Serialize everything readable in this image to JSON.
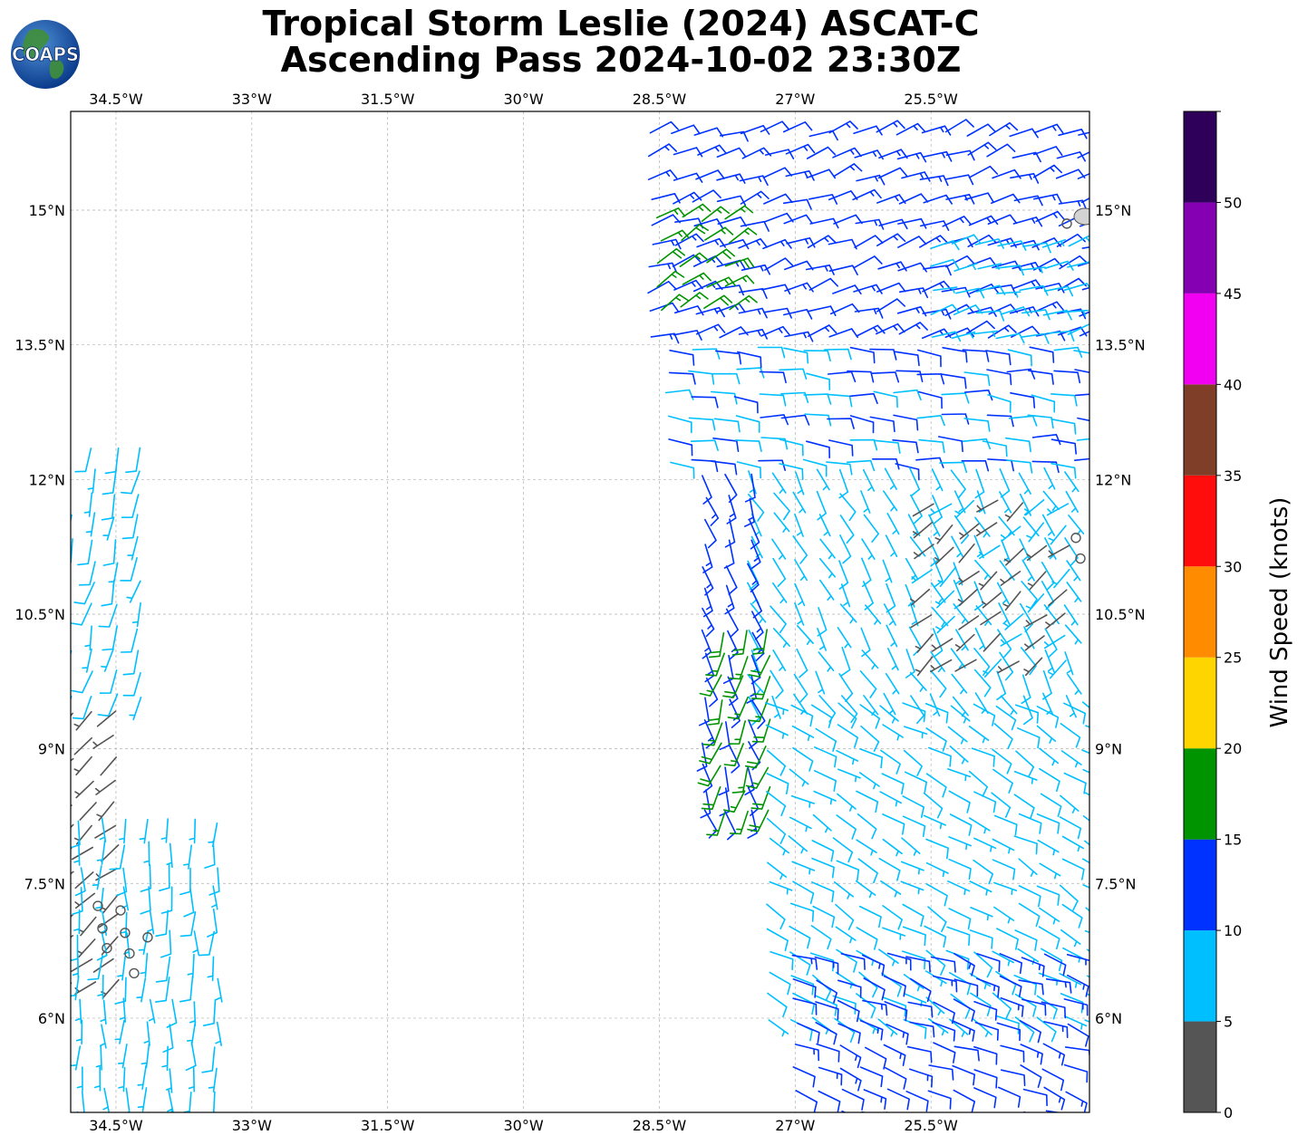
{
  "title": {
    "line1": "Tropical Storm Leslie (2024) ASCAT-C",
    "line2": "Ascending Pass 2024-10-02 23:30Z"
  },
  "logo": {
    "text": "COAPS",
    "icon": "globe-icon"
  },
  "map": {
    "lon_range": [
      -35.0,
      -23.75
    ],
    "lat_range": [
      4.95,
      16.1
    ],
    "lon_ticks": [
      {
        "value": -34.5,
        "label": "34.5°W"
      },
      {
        "value": -33.0,
        "label": "33°W"
      },
      {
        "value": -31.5,
        "label": "31.5°W"
      },
      {
        "value": -30.0,
        "label": "30°W"
      },
      {
        "value": -28.5,
        "label": "28.5°W"
      },
      {
        "value": -27.0,
        "label": "27°W"
      },
      {
        "value": -25.5,
        "label": "25.5°W"
      }
    ],
    "lat_ticks": [
      {
        "value": 15.0,
        "label": "15°N"
      },
      {
        "value": 13.5,
        "label": "13.5°N"
      },
      {
        "value": 12.0,
        "label": "12°N"
      },
      {
        "value": 10.5,
        "label": "10.5°N"
      },
      {
        "value": 9.0,
        "label": "9°N"
      },
      {
        "value": 7.5,
        "label": "7.5°N"
      },
      {
        "value": 6.0,
        "label": "6°N"
      }
    ],
    "grid": true,
    "island": {
      "lon": -23.8,
      "lat": 14.93
    }
  },
  "colorbar": {
    "label": "Wind Speed (knots)",
    "range": [
      0,
      55
    ],
    "ticks": [
      0,
      5,
      10,
      15,
      20,
      25,
      30,
      35,
      40,
      45,
      50
    ],
    "bins": [
      {
        "from": 0,
        "to": 5,
        "color": "#555555"
      },
      {
        "from": 5,
        "to": 10,
        "color": "#00bfff"
      },
      {
        "from": 10,
        "to": 15,
        "color": "#0032ff"
      },
      {
        "from": 15,
        "to": 20,
        "color": "#009400"
      },
      {
        "from": 20,
        "to": 25,
        "color": "#ffd500"
      },
      {
        "from": 25,
        "to": 30,
        "color": "#ff8c00"
      },
      {
        "from": 30,
        "to": 35,
        "color": "#ff0d0d"
      },
      {
        "from": 35,
        "to": 40,
        "color": "#7f3e28"
      },
      {
        "from": 40,
        "to": 45,
        "color": "#f200f2"
      },
      {
        "from": 45,
        "to": 50,
        "color": "#8500b2"
      },
      {
        "from": 50,
        "to": 55,
        "color": "#2e005a"
      }
    ]
  },
  "chart_data": {
    "type": "wind-barbs",
    "units": "knots",
    "calm_points": [
      {
        "lon": -34.7,
        "lat": 7.25
      },
      {
        "lon": -34.45,
        "lat": 7.2
      },
      {
        "lon": -34.65,
        "lat": 7.0
      },
      {
        "lon": -34.4,
        "lat": 6.95
      },
      {
        "lon": -34.15,
        "lat": 6.9
      },
      {
        "lon": -34.6,
        "lat": 6.78
      },
      {
        "lon": -34.35,
        "lat": 6.72
      },
      {
        "lon": -34.3,
        "lat": 6.5
      },
      {
        "lon": -23.9,
        "lat": 11.35
      },
      {
        "lon": -23.85,
        "lat": 11.12
      },
      {
        "lon": -24.0,
        "lat": 14.85
      }
    ],
    "regions": [
      {
        "name": "east-swath-north",
        "lon": [
          -28.6,
          -23.8
        ],
        "lat": [
          13.6,
          16.05
        ],
        "speed": 12,
        "dir_from": 70
      },
      {
        "name": "east-swath-north-green",
        "lon": [
          -28.5,
          -27.7
        ],
        "lat": [
          13.9,
          15.0
        ],
        "speed": 17,
        "dir_from": 60
      },
      {
        "name": "east-swath-north-light",
        "lon": [
          -25.5,
          -23.8
        ],
        "lat": [
          13.6,
          14.6
        ],
        "speed": 8,
        "dir_from": 75
      },
      {
        "name": "east-swath-mid",
        "lon": [
          -28.4,
          -23.8
        ],
        "lat": [
          12.2,
          13.6
        ],
        "speed": 10,
        "dir_from": 95
      },
      {
        "name": "east-swath-center",
        "lon": [
          -27.5,
          -23.8
        ],
        "lat": [
          9.6,
          12.2
        ],
        "speed": 7,
        "dir_from": 150
      },
      {
        "name": "east-swath-calm",
        "lon": [
          -25.5,
          -23.8
        ],
        "lat": [
          10.0,
          11.8
        ],
        "speed": 4,
        "dir_from": 230
      },
      {
        "name": "east-swath-west-edge",
        "lon": [
          -28.0,
          -27.4
        ],
        "lat": [
          8.3,
          12.2
        ],
        "speed": 12,
        "dir_from": 160
      },
      {
        "name": "east-swath-green-band",
        "lon": [
          -27.8,
          -27.2
        ],
        "lat": [
          8.3,
          10.3
        ],
        "speed": 17,
        "dir_from": 200
      },
      {
        "name": "east-swath-south",
        "lon": [
          -27.3,
          -23.8
        ],
        "lat": [
          6.0,
          9.6
        ],
        "speed": 8,
        "dir_from": 120
      },
      {
        "name": "east-swath-far-south",
        "lon": [
          -27.0,
          -23.8
        ],
        "lat": [
          4.95,
          6.8
        ],
        "speed": 12,
        "dir_from": 110
      },
      {
        "name": "west-swath-north",
        "lon": [
          -35.0,
          -34.2
        ],
        "lat": [
          9.6,
          12.5
        ],
        "speed": 8,
        "dir_from": 195
      },
      {
        "name": "west-swath-calm",
        "lon": [
          -35.0,
          -34.3
        ],
        "lat": [
          6.4,
          9.6
        ],
        "speed": 3,
        "dir_from": 230
      },
      {
        "name": "west-swath-south",
        "lon": [
          -34.9,
          -33.3
        ],
        "lat": [
          4.95,
          8.3
        ],
        "speed": 7,
        "dir_from": 180
      }
    ]
  }
}
